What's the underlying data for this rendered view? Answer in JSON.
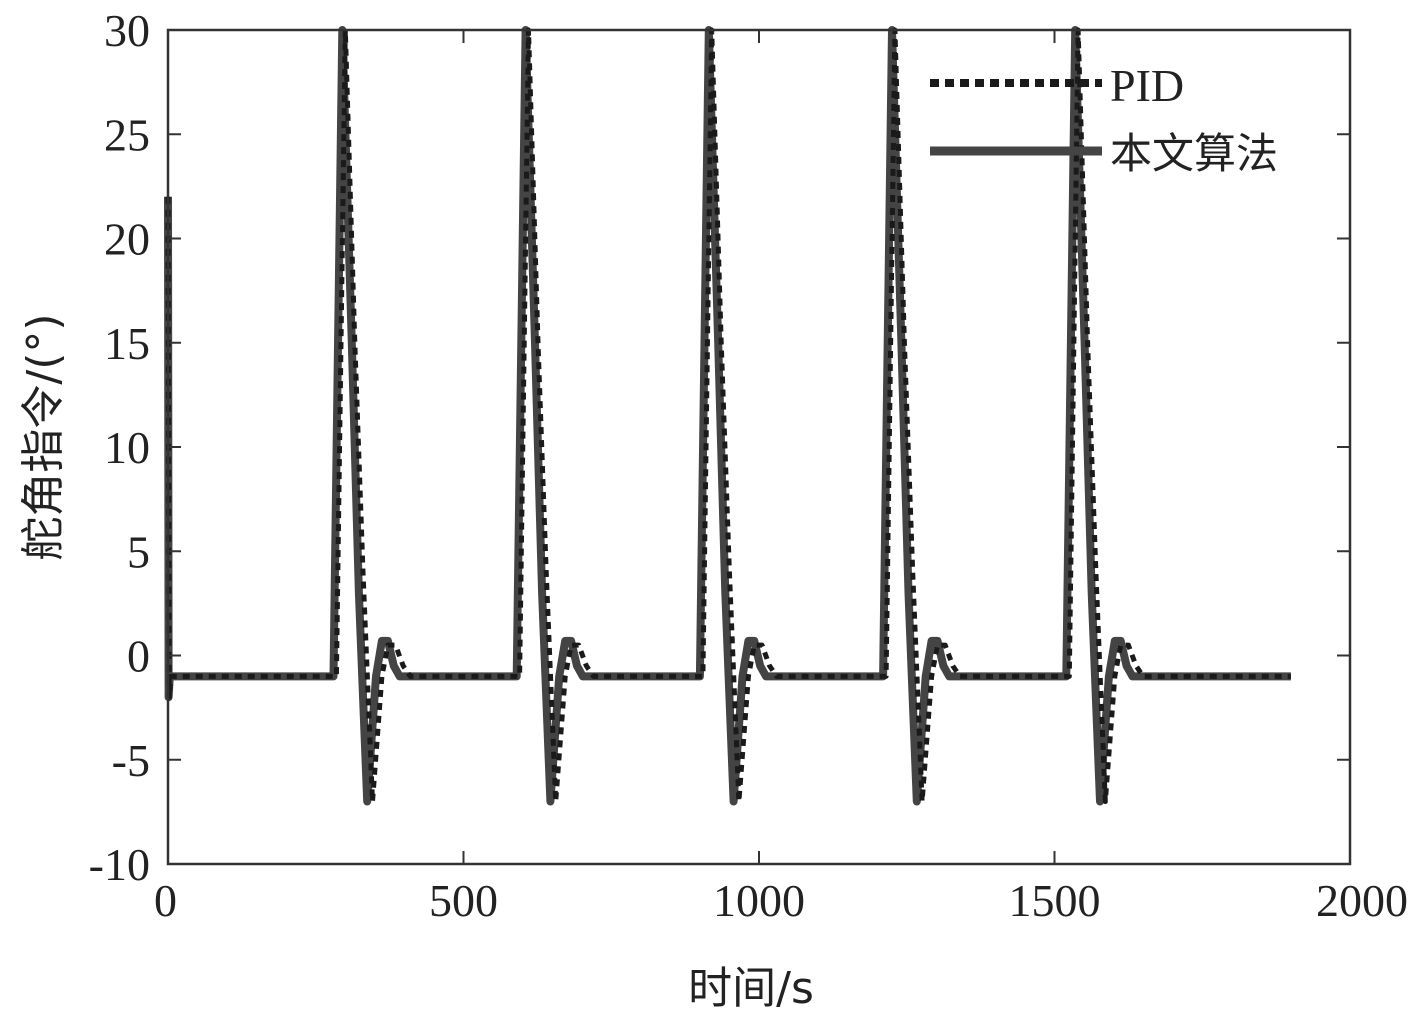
{
  "chart_data": {
    "type": "line",
    "xlabel": "时间/s",
    "ylabel": "舵角指令/(°)",
    "xlim": [
      0,
      2000
    ],
    "ylim": [
      -10,
      30
    ],
    "xticks": [
      0,
      500,
      1000,
      1500,
      2000
    ],
    "yticks": [
      -10,
      -5,
      0,
      5,
      10,
      15,
      20,
      25,
      30
    ],
    "xtick_labels": [
      "0",
      "500",
      "1000",
      "1500",
      "2000"
    ],
    "ytick_labels": [
      "-10",
      "-5",
      "0",
      "5",
      "10",
      "15",
      "20",
      "25",
      "30"
    ],
    "grid": false,
    "legend_position": "top-right",
    "series": [
      {
        "name": "PID",
        "style": "dotted",
        "color": "#1a1a1a",
        "points": [
          [
            0,
            22
          ],
          [
            2,
            -2
          ],
          [
            5,
            -1
          ],
          [
            10,
            -1
          ],
          [
            285,
            -1
          ],
          [
            300,
            30
          ],
          [
            316,
            15
          ],
          [
            330,
            4
          ],
          [
            346,
            -7
          ],
          [
            362,
            -1
          ],
          [
            372,
            0.5
          ],
          [
            385,
            0.5
          ],
          [
            398,
            -0.5
          ],
          [
            410,
            -1
          ],
          [
            595,
            -1
          ],
          [
            610,
            30
          ],
          [
            626,
            15
          ],
          [
            640,
            4
          ],
          [
            656,
            -7
          ],
          [
            672,
            -1
          ],
          [
            682,
            0.5
          ],
          [
            695,
            0.5
          ],
          [
            708,
            -0.5
          ],
          [
            720,
            -1
          ],
          [
            905,
            -1
          ],
          [
            920,
            30
          ],
          [
            936,
            15
          ],
          [
            950,
            4
          ],
          [
            966,
            -7
          ],
          [
            982,
            -1
          ],
          [
            992,
            0.5
          ],
          [
            1005,
            0.5
          ],
          [
            1018,
            -0.5
          ],
          [
            1030,
            -1
          ],
          [
            1215,
            -1
          ],
          [
            1230,
            30
          ],
          [
            1246,
            15
          ],
          [
            1260,
            4
          ],
          [
            1276,
            -7
          ],
          [
            1292,
            -1
          ],
          [
            1302,
            0.5
          ],
          [
            1315,
            0.5
          ],
          [
            1328,
            -0.5
          ],
          [
            1340,
            -1
          ],
          [
            1525,
            -1
          ],
          [
            1540,
            30
          ],
          [
            1556,
            15
          ],
          [
            1570,
            4
          ],
          [
            1586,
            -7
          ],
          [
            1602,
            -1
          ],
          [
            1612,
            0.5
          ],
          [
            1625,
            0.5
          ],
          [
            1638,
            -0.5
          ],
          [
            1650,
            -1
          ],
          [
            1900,
            -1
          ]
        ]
      },
      {
        "name": "本文算法",
        "style": "solid",
        "color": "#444444",
        "points": [
          [
            0,
            22
          ],
          [
            1,
            -2
          ],
          [
            3,
            -1
          ],
          [
            8,
            -1
          ],
          [
            280,
            -1
          ],
          [
            295,
            30
          ],
          [
            311,
            15
          ],
          [
            323,
            3
          ],
          [
            337,
            -7
          ],
          [
            352,
            -1
          ],
          [
            362,
            0.7
          ],
          [
            372,
            0.7
          ],
          [
            382,
            -0.5
          ],
          [
            392,
            -1
          ],
          [
            590,
            -1
          ],
          [
            605,
            30
          ],
          [
            621,
            15
          ],
          [
            633,
            3
          ],
          [
            647,
            -7
          ],
          [
            662,
            -1
          ],
          [
            672,
            0.7
          ],
          [
            682,
            0.7
          ],
          [
            692,
            -0.5
          ],
          [
            702,
            -1
          ],
          [
            900,
            -1
          ],
          [
            915,
            30
          ],
          [
            931,
            15
          ],
          [
            943,
            3
          ],
          [
            957,
            -7
          ],
          [
            972,
            -1
          ],
          [
            982,
            0.7
          ],
          [
            992,
            0.7
          ],
          [
            1002,
            -0.5
          ],
          [
            1012,
            -1
          ],
          [
            1210,
            -1
          ],
          [
            1225,
            30
          ],
          [
            1241,
            15
          ],
          [
            1253,
            3
          ],
          [
            1267,
            -7
          ],
          [
            1282,
            -1
          ],
          [
            1292,
            0.7
          ],
          [
            1302,
            0.7
          ],
          [
            1312,
            -0.5
          ],
          [
            1322,
            -1
          ],
          [
            1520,
            -1
          ],
          [
            1535,
            30
          ],
          [
            1551,
            15
          ],
          [
            1563,
            3
          ],
          [
            1577,
            -7
          ],
          [
            1592,
            -1
          ],
          [
            1602,
            0.7
          ],
          [
            1612,
            0.7
          ],
          [
            1622,
            -0.5
          ],
          [
            1632,
            -1
          ],
          [
            1900,
            -1
          ]
        ]
      }
    ]
  }
}
